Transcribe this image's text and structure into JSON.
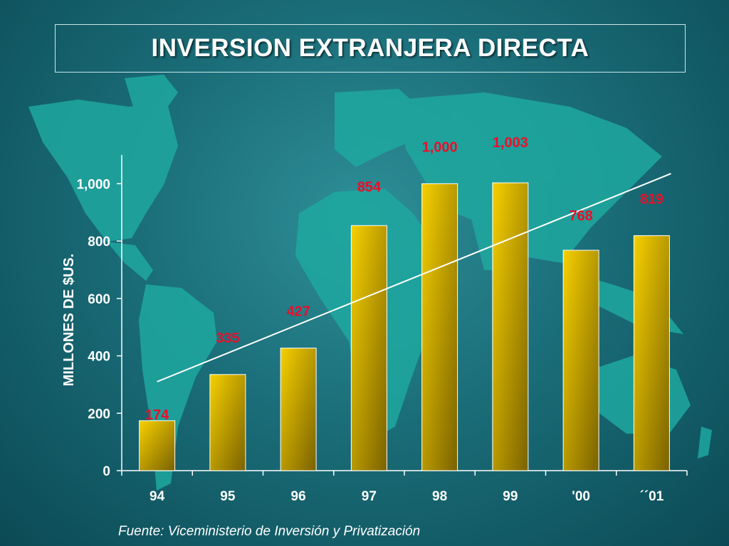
{
  "title": "INVERSION EXTRANJERA DIRECTA",
  "source": "Fuente: Viceministerio de Inversión y Privatización",
  "colors": {
    "bar_light": "#f6d000",
    "bar_dark": "#7a6200",
    "data_label": "#e8102a",
    "trendline": "#ffffff",
    "map_land": "#1fa8a0"
  },
  "chart_data": {
    "type": "bar",
    "categories": [
      "94",
      "95",
      "96",
      "97",
      "98",
      "99",
      "'00",
      "´´01"
    ],
    "values": [
      174,
      335,
      427,
      854,
      1000,
      1003,
      768,
      819
    ],
    "data_labels": [
      "174",
      "335",
      "427",
      "854",
      "1,000",
      "1,003",
      "768",
      "819"
    ],
    "ylabel": "MILLONES DE $US.",
    "ylim": [
      0,
      1100
    ],
    "yticks": [
      0,
      200,
      400,
      600,
      800,
      1000
    ],
    "ytick_labels": [
      "0",
      "200",
      "400",
      "600",
      "800",
      "1,000"
    ],
    "trendline": {
      "start": 310,
      "end": 1035
    },
    "grid": false,
    "legend": "none"
  }
}
